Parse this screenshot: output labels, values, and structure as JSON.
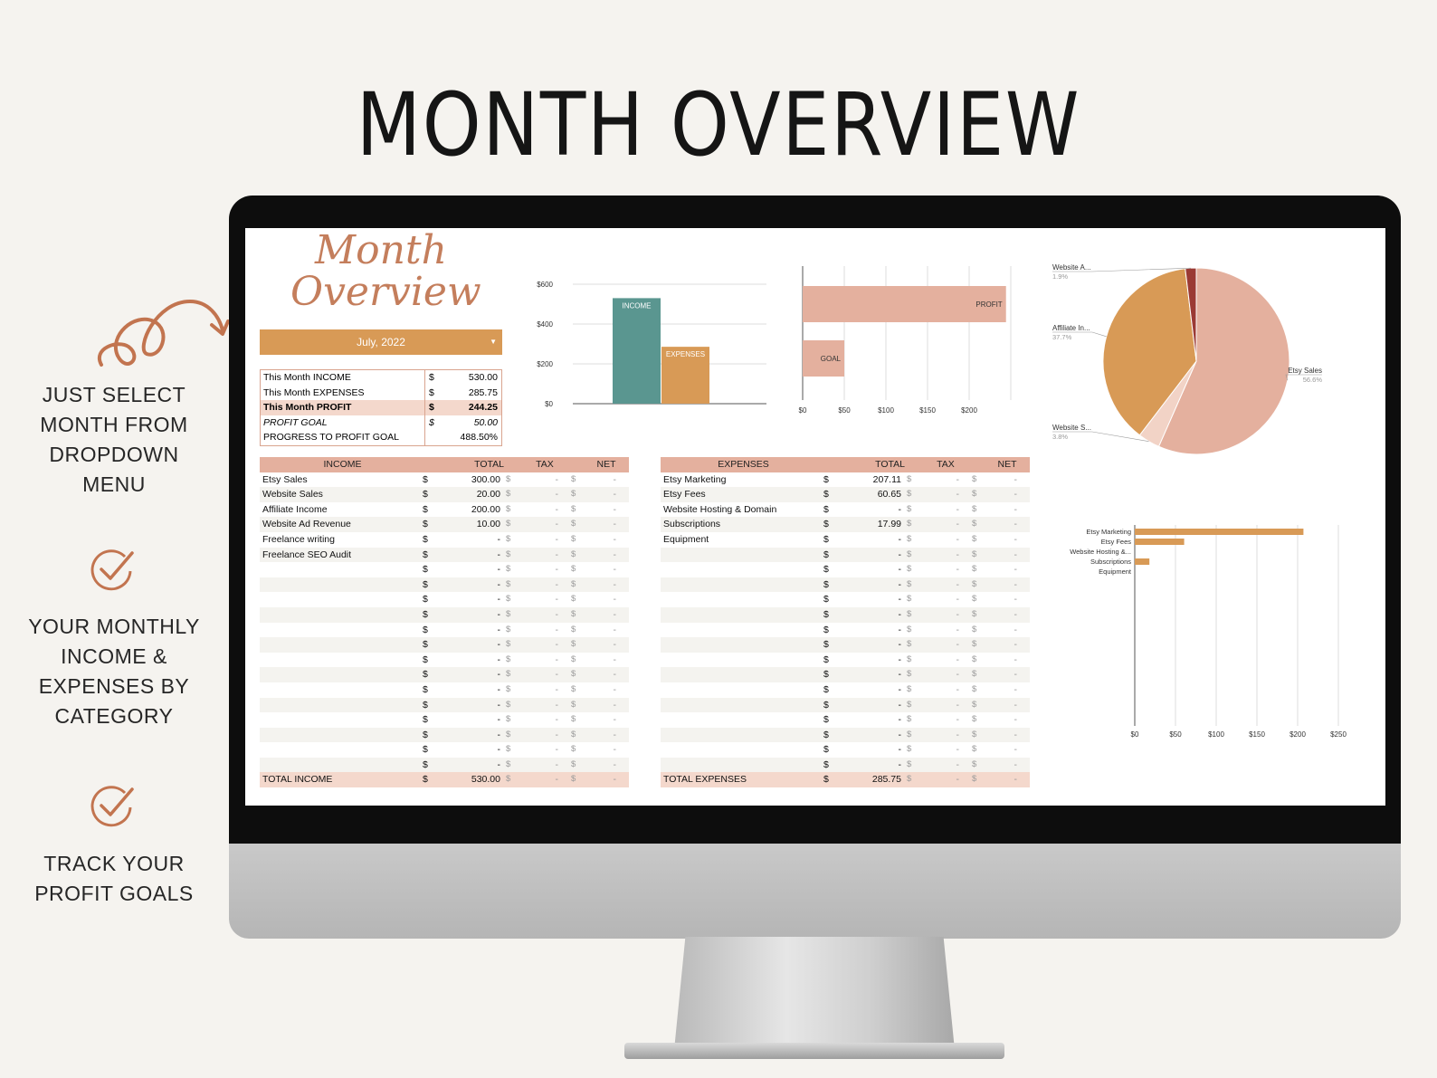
{
  "hero": {
    "title": "MONTH OVERVIEW"
  },
  "features": [
    {
      "text": "JUST SELECT\nMONTH FROM\nDROPDOWN\nMENU"
    },
    {
      "text": "YOUR MONTHLY\nINCOME &\nEXPENSES BY\nCATEGORY"
    },
    {
      "text": "TRACK YOUR\nPROFIT GOALS"
    }
  ],
  "colors": {
    "accent": "#c47e5c",
    "teal": "#5a9690",
    "gold": "#d89a56",
    "salmon": "#e4b09e",
    "maroon": "#9b3a34",
    "pale": "#f4d8cc"
  },
  "sheet": {
    "title_line1": "Month",
    "title_line2": "Overview",
    "month_selector": {
      "value": "July, 2022"
    },
    "summary": [
      {
        "label": "This Month INCOME",
        "currency": "$",
        "value": "530.00",
        "style": "plain"
      },
      {
        "label": "This Month EXPENSES",
        "currency": "$",
        "value": "285.75",
        "style": "plain"
      },
      {
        "label": "This Month PROFIT",
        "currency": "$",
        "value": "244.25",
        "style": "bold"
      },
      {
        "label": "PROFIT GOAL",
        "currency": "$",
        "value": "50.00",
        "style": "italic"
      },
      {
        "label": "PROGRESS TO PROFIT GOAL",
        "currency": "",
        "value": "488.50%",
        "style": "plain"
      }
    ],
    "income_table": {
      "headers": [
        "INCOME",
        "TOTAL",
        "TAX",
        "NET"
      ],
      "rows": [
        [
          "Etsy Sales",
          "300.00"
        ],
        [
          "Website Sales",
          "20.00"
        ],
        [
          "Affiliate Income",
          "200.00"
        ],
        [
          "Website Ad Revenue",
          "10.00"
        ],
        [
          "Freelance writing",
          "-"
        ],
        [
          "Freelance SEO Audit",
          "-"
        ],
        [
          "",
          "-"
        ],
        [
          "",
          "-"
        ],
        [
          "",
          "-"
        ],
        [
          "",
          "-"
        ],
        [
          "",
          "-"
        ],
        [
          "",
          "-"
        ],
        [
          "",
          "-"
        ],
        [
          "",
          "-"
        ],
        [
          "",
          "-"
        ],
        [
          "",
          "-"
        ],
        [
          "",
          "-"
        ],
        [
          "",
          "-"
        ],
        [
          "",
          "-"
        ],
        [
          "",
          "-"
        ]
      ],
      "total": {
        "label": "TOTAL INCOME",
        "value": "530.00"
      },
      "currency": "$",
      "dash": "-"
    },
    "expense_table": {
      "headers": [
        "EXPENSES",
        "TOTAL",
        "TAX",
        "NET"
      ],
      "rows": [
        [
          "Etsy Marketing",
          "207.11"
        ],
        [
          "Etsy Fees",
          "60.65"
        ],
        [
          "Website Hosting & Domain",
          "-"
        ],
        [
          "Subscriptions",
          "17.99"
        ],
        [
          "Equipment",
          "-"
        ],
        [
          "",
          "-"
        ],
        [
          "",
          "-"
        ],
        [
          "",
          "-"
        ],
        [
          "",
          "-"
        ],
        [
          "",
          "-"
        ],
        [
          "",
          "-"
        ],
        [
          "",
          "-"
        ],
        [
          "",
          "-"
        ],
        [
          "",
          "-"
        ],
        [
          "",
          "-"
        ],
        [
          "",
          "-"
        ],
        [
          "",
          "-"
        ],
        [
          "",
          "-"
        ],
        [
          "",
          "-"
        ],
        [
          "",
          "-"
        ]
      ],
      "total": {
        "label": "TOTAL EXPENSES",
        "value": "285.75"
      },
      "currency": "$",
      "dash": "-"
    }
  },
  "chart_data": [
    {
      "type": "bar",
      "categories": [
        "INCOME",
        "EXPENSES"
      ],
      "values": [
        530,
        285.75
      ],
      "colors": [
        "#5a9690",
        "#d89a56"
      ],
      "ylim": [
        0,
        600
      ],
      "yticks": [
        "$0",
        "$200",
        "$400",
        "$600"
      ],
      "grid": true
    },
    {
      "type": "bar",
      "orientation": "horizontal",
      "categories": [
        "PROFIT",
        "GOAL"
      ],
      "values": [
        244.25,
        50
      ],
      "xlim": [
        0,
        250
      ],
      "xticks": [
        "$0",
        "$50",
        "$100",
        "$150",
        "$200"
      ],
      "grid": true
    },
    {
      "type": "pie",
      "slices": [
        {
          "label": "Etsy Sales",
          "pct": "56.6%",
          "value": 56.6,
          "color": "#e4b09e"
        },
        {
          "label": "Website S...",
          "pct": "3.8%",
          "value": 3.8,
          "color": "#f2d3c6"
        },
        {
          "label": "Affiliate In...",
          "pct": "37.7%",
          "value": 37.7,
          "color": "#d89a56"
        },
        {
          "label": "Website A...",
          "pct": "1.9%",
          "value": 1.9,
          "color": "#9b3a34"
        }
      ]
    },
    {
      "type": "bar",
      "orientation": "horizontal",
      "categories": [
        "Etsy Marketing",
        "Etsy Fees",
        "Website Hosting &...",
        "Subscriptions",
        "Equipment"
      ],
      "values": [
        207.11,
        60.65,
        0,
        17.99,
        0
      ],
      "xlim": [
        0,
        250
      ],
      "xticks": [
        "$0",
        "$50",
        "$100",
        "$150",
        "$200",
        "$250"
      ],
      "grid": true
    }
  ]
}
